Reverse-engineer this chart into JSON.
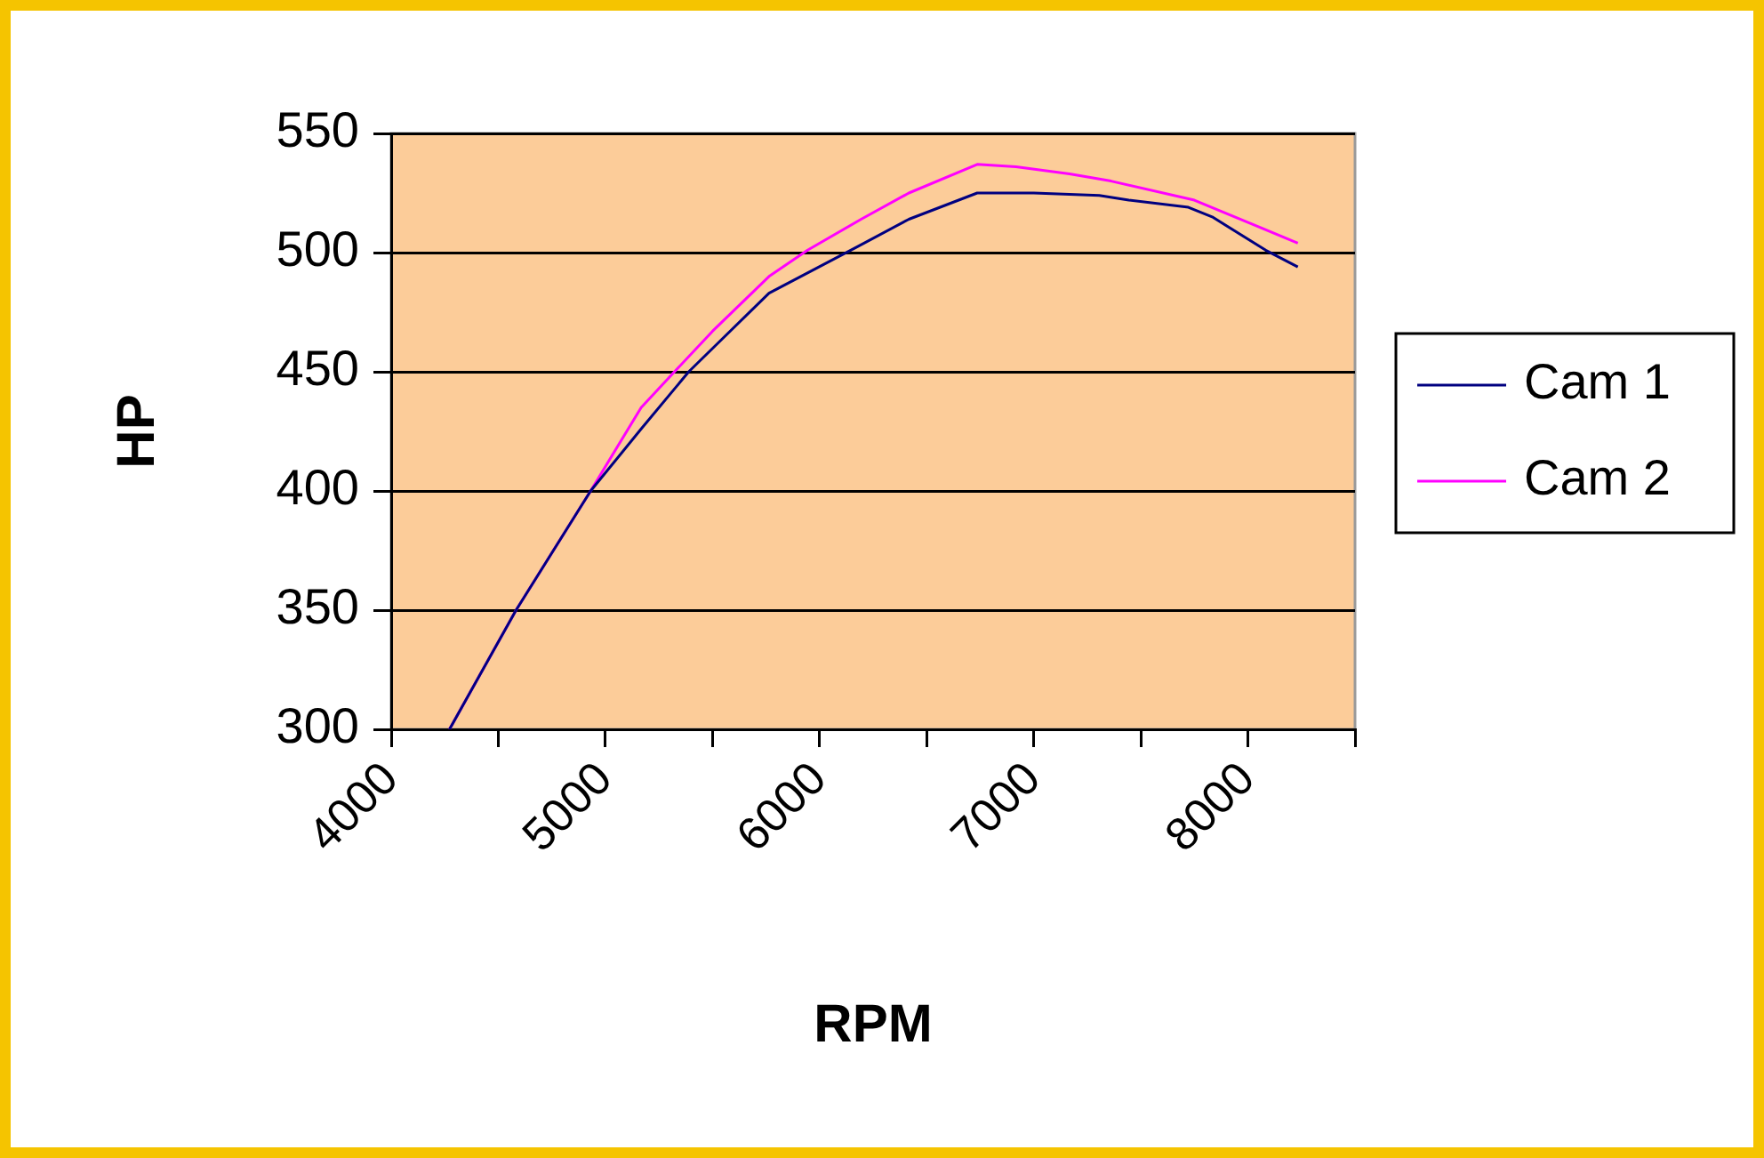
{
  "chart_data": {
    "type": "line",
    "xlabel": "RPM",
    "ylabel": "HP",
    "xlim": [
      4000,
      8500
    ],
    "xticks": [
      4000,
      {
        "value": 4500,
        "label": null
      },
      5000,
      {
        "value": 5500,
        "label": null
      },
      6000,
      {
        "value": 6500,
        "label": null
      },
      7000,
      {
        "value": 7500,
        "label": null
      },
      8000,
      {
        "value": 8500,
        "label": null
      }
    ],
    "ylim": [
      300,
      550
    ],
    "yticks": [
      300,
      350,
      400,
      450,
      500,
      550
    ],
    "grid": "y",
    "legend": "right",
    "marker": "none",
    "line_style": "solid",
    "series": [
      {
        "name": "Cam 1",
        "color": "#000080",
        "x": [
          4272,
          4583,
          4931,
          5167,
          5389,
          5514,
          5764,
          6167,
          6417,
          6736,
          7000,
          7306,
          7444,
          7722,
          7833,
          8083,
          8233
        ],
        "values": [
          300,
          350,
          400,
          426,
          450,
          461,
          483,
          502,
          514,
          525,
          525,
          524,
          522,
          519,
          515,
          501,
          494
        ]
      },
      {
        "name": "Cam 2",
        "color": "#ff00ff",
        "x": [
          4272,
          4583,
          4931,
          5167,
          5333,
          5500,
          5764,
          5944,
          6194,
          6417,
          6736,
          6917,
          7167,
          7361,
          7750,
          8233
        ],
        "values": [
          300,
          350,
          400,
          435,
          451,
          467,
          490,
          501,
          514,
          525,
          537,
          536,
          533,
          530,
          522,
          504
        ]
      }
    ]
  }
}
